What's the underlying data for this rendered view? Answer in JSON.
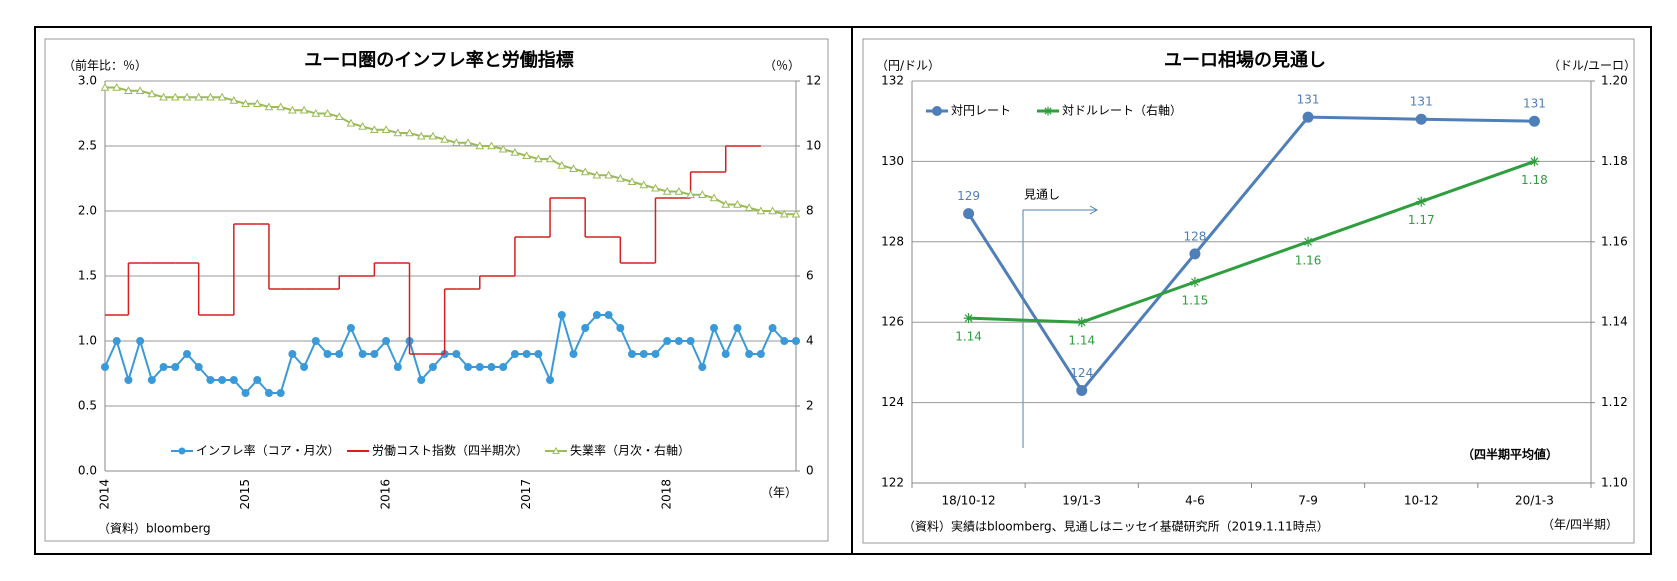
{
  "chart_data": [
    {
      "type": "line",
      "title": "ユーロ圏のインフレ率と労働指標",
      "y_label": "（前年比：％）",
      "y2_label": "（％）",
      "x_label": "（年）",
      "source": "（資料）bloomberg",
      "categories": [
        "2014",
        null,
        null,
        null,
        null,
        null,
        null,
        null,
        null,
        null,
        null,
        null,
        "2015",
        null,
        null,
        null,
        null,
        null,
        null,
        null,
        null,
        null,
        null,
        null,
        "2016",
        null,
        null,
        null,
        null,
        null,
        null,
        null,
        null,
        null,
        null,
        null,
        "2017",
        null,
        null,
        null,
        null,
        null,
        null,
        null,
        null,
        null,
        null,
        null,
        "2018",
        null,
        null,
        null,
        null,
        null,
        null,
        null,
        null,
        null,
        null,
        null
      ],
      "ylim": [
        0,
        3
      ],
      "yticks": [
        {
          "value": 0,
          "label": "0.0"
        },
        0.5,
        {
          "value": 1,
          "label": "1.0"
        },
        1.5,
        {
          "value": 2,
          "label": "2.0"
        },
        2.5,
        {
          "value": 3,
          "label": "3.0"
        }
      ],
      "y2lim": [
        0,
        12
      ],
      "y2ticks": [
        0,
        2,
        4,
        6,
        8,
        10,
        12
      ],
      "grid": true,
      "legend": "lower center",
      "series": [
        {
          "name": "インフレ率（コア・月次）",
          "color": "#3a9ad9",
          "marker": "circle",
          "values": [
            0.8,
            1.0,
            0.7,
            1.0,
            0.7,
            0.8,
            0.8,
            0.9,
            0.8,
            0.7,
            0.7,
            0.7,
            0.6,
            0.7,
            0.6,
            0.6,
            0.9,
            0.8,
            1.0,
            0.9,
            0.9,
            1.1,
            0.9,
            0.9,
            1.0,
            0.8,
            1.0,
            0.7,
            0.8,
            0.9,
            0.9,
            0.8,
            0.8,
            0.8,
            0.8,
            0.9,
            0.9,
            0.9,
            0.7,
            1.2,
            0.9,
            1.1,
            1.2,
            1.2,
            1.1,
            0.9,
            0.9,
            0.9,
            1.0,
            1.0,
            1.0,
            0.8,
            1.1,
            0.9,
            1.1,
            0.9,
            0.9,
            1.1,
            1.0,
            1.0
          ]
        },
        {
          "name": "労働コスト指数（四半期次）",
          "color": "#d42020",
          "step": true,
          "values": [
            1.2,
            1.2,
            1.6,
            1.6,
            1.6,
            1.6,
            1.6,
            1.6,
            1.2,
            1.2,
            1.2,
            1.9,
            1.9,
            1.9,
            1.4,
            1.4,
            1.4,
            1.4,
            1.4,
            1.4,
            1.5,
            1.5,
            1.5,
            1.6,
            1.6,
            1.6,
            0.9,
            0.9,
            0.9,
            1.4,
            1.4,
            1.4,
            1.5,
            1.5,
            1.5,
            1.8,
            1.8,
            1.8,
            2.1,
            2.1,
            2.1,
            1.8,
            1.8,
            1.8,
            1.6,
            1.6,
            1.6,
            2.1,
            2.1,
            2.1,
            2.3,
            2.3,
            2.3,
            2.5,
            2.5,
            2.5,
            null,
            null,
            null,
            null
          ]
        },
        {
          "name": "失業率（月次・右軸）",
          "color": "#9bbb59",
          "marker": "triangle",
          "axis": "y2",
          "values": [
            11.8,
            11.8,
            11.7,
            11.7,
            11.6,
            11.5,
            11.5,
            11.5,
            11.5,
            11.5,
            11.5,
            11.4,
            11.3,
            11.3,
            11.2,
            11.2,
            11.1,
            11.1,
            11.0,
            11.0,
            10.9,
            10.7,
            10.6,
            10.5,
            10.5,
            10.4,
            10.4,
            10.3,
            10.3,
            10.2,
            10.1,
            10.1,
            10.0,
            10.0,
            9.9,
            9.8,
            9.7,
            9.6,
            9.6,
            9.4,
            9.3,
            9.2,
            9.1,
            9.1,
            9.0,
            8.9,
            8.8,
            8.7,
            8.6,
            8.6,
            8.5,
            8.5,
            8.4,
            8.2,
            8.2,
            8.1,
            8.0,
            8.0,
            7.9,
            7.9
          ]
        }
      ]
    },
    {
      "type": "line",
      "title": "ユーロ相場の見通し",
      "y_label": "（円/ドル）",
      "y2_label": "（ドル/ユーロ）",
      "x_label": "（年/四半期）",
      "source": "（資料）実績はbloomberg、見通しはニッセイ基礎研究所（2019.1.11時点）",
      "note": "（四半期平均値）",
      "annotation": "見通し",
      "categories": [
        "18/10-12",
        "19/1-3",
        "4-6",
        "7-9",
        "10-12",
        "20/1-3"
      ],
      "ylim": [
        122,
        132
      ],
      "yticks": [
        122,
        124,
        126,
        128,
        130,
        132
      ],
      "y2lim": [
        1.1,
        1.2
      ],
      "y2ticks": [
        {
          "value": 1.1,
          "label": "1.10"
        },
        1.12,
        1.14,
        1.16,
        1.18,
        {
          "value": 1.2,
          "label": "1.20"
        }
      ],
      "grid": true,
      "legend": "upper left",
      "series": [
        {
          "name": "対円レート",
          "color": "#4f7fb8",
          "marker": "circle",
          "values": [
            128.7,
            124.3,
            127.7,
            131.1,
            131.05,
            131.0
          ],
          "value_labels": [
            "129",
            "124",
            "128",
            "131",
            "131",
            "131"
          ]
        },
        {
          "name": "対ドルレート（右軸）",
          "color": "#2e9e3e",
          "marker": "star",
          "axis": "y2",
          "values": [
            1.141,
            1.14,
            1.15,
            1.16,
            1.17,
            1.18
          ],
          "value_labels": [
            "1.14",
            "1.14",
            "1.15",
            "1.16",
            "1.17",
            "1.18"
          ]
        }
      ]
    }
  ]
}
